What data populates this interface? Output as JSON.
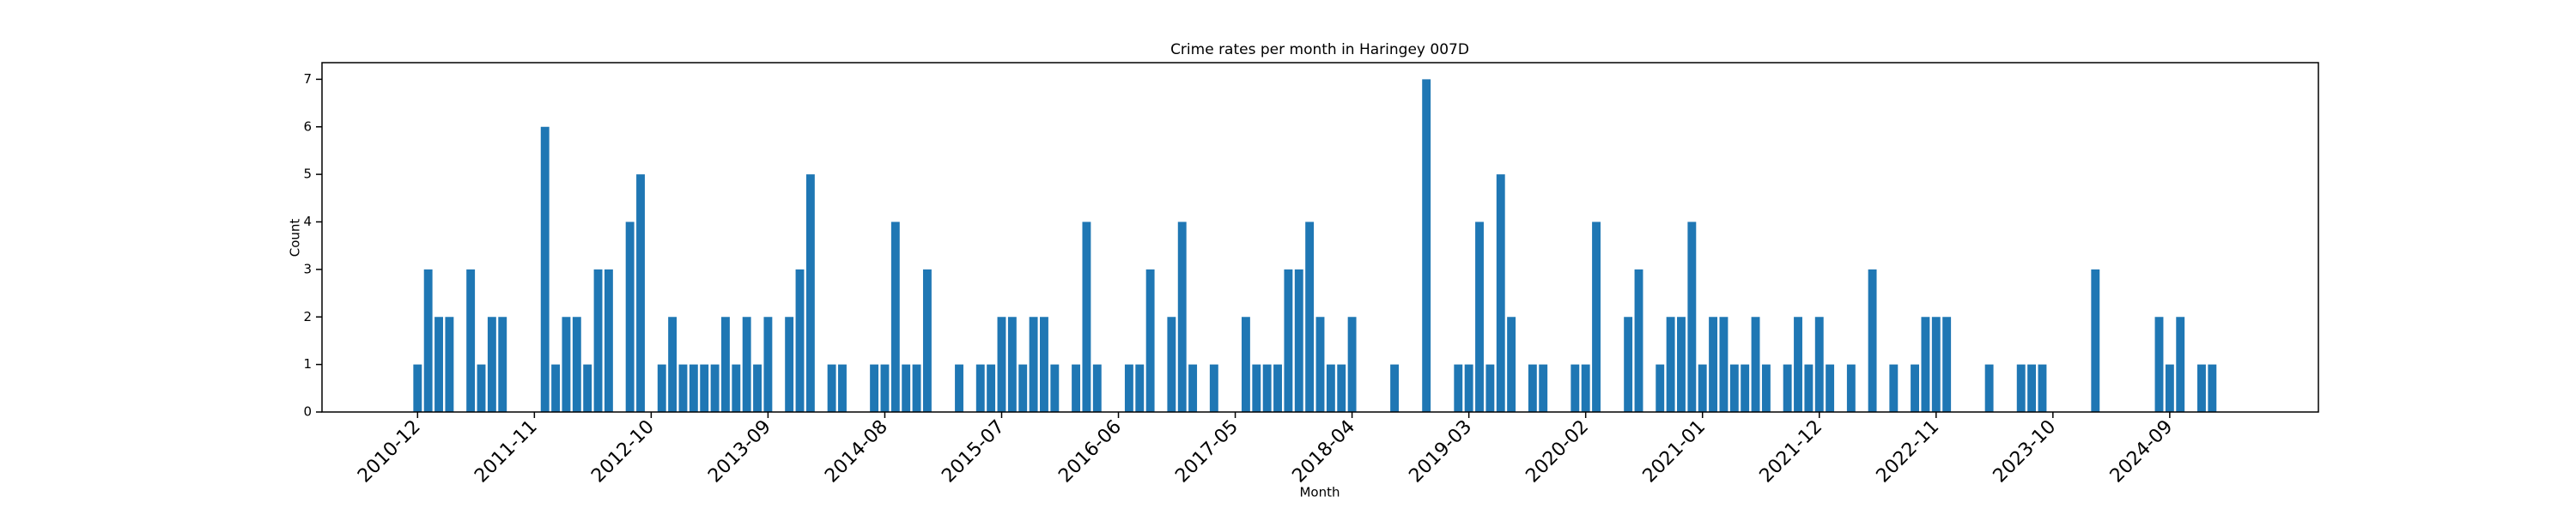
{
  "chart_data": {
    "type": "bar",
    "title": "Crime rates per month in Haringey 007D",
    "x_label": "Month",
    "y_label": "Count",
    "color": "#1f77b4",
    "x": [
      "2010-12",
      "2011-01",
      "2011-02",
      "2011-03",
      "2011-05",
      "2011-06",
      "2011-07",
      "2011-08",
      "2011-12",
      "2012-01",
      "2012-02",
      "2012-03",
      "2012-04",
      "2012-05",
      "2012-06",
      "2012-08",
      "2012-09",
      "2012-11",
      "2012-12",
      "2013-01",
      "2013-02",
      "2013-03",
      "2013-04",
      "2013-05",
      "2013-06",
      "2013-07",
      "2013-08",
      "2013-09",
      "2013-11",
      "2013-12",
      "2014-01",
      "2014-03",
      "2014-04",
      "2014-07",
      "2014-08",
      "2014-09",
      "2014-10",
      "2014-11",
      "2014-12",
      "2015-03",
      "2015-05",
      "2015-06",
      "2015-07",
      "2015-08",
      "2015-09",
      "2015-10",
      "2015-11",
      "2015-12",
      "2016-02",
      "2016-03",
      "2016-04",
      "2016-07",
      "2016-08",
      "2016-09",
      "2016-11",
      "2016-12",
      "2017-01",
      "2017-03",
      "2017-06",
      "2017-07",
      "2017-08",
      "2017-09",
      "2017-10",
      "2017-11",
      "2017-12",
      "2018-01",
      "2018-02",
      "2018-03",
      "2018-04",
      "2018-08",
      "2018-11",
      "2019-02",
      "2019-03",
      "2019-04",
      "2019-05",
      "2019-06",
      "2019-07",
      "2019-09",
      "2019-10",
      "2020-01",
      "2020-02",
      "2020-03",
      "2020-06",
      "2020-07",
      "2020-09",
      "2020-10",
      "2020-11",
      "2020-12",
      "2021-01",
      "2021-02",
      "2021-03",
      "2021-04",
      "2021-05",
      "2021-06",
      "2021-07",
      "2021-09",
      "2021-10",
      "2021-11",
      "2021-12",
      "2022-01",
      "2022-03",
      "2022-05",
      "2022-07",
      "2022-09",
      "2022-10",
      "2022-11",
      "2022-12",
      "2023-04",
      "2023-07",
      "2023-08",
      "2023-09",
      "2024-02",
      "2024-08",
      "2024-09",
      "2024-10",
      "2024-12",
      "2025-01"
    ],
    "values": [
      1,
      3,
      2,
      2,
      3,
      1,
      2,
      2,
      6,
      1,
      2,
      2,
      1,
      3,
      3,
      4,
      5,
      1,
      2,
      1,
      1,
      1,
      1,
      2,
      1,
      2,
      1,
      2,
      2,
      3,
      5,
      1,
      1,
      1,
      1,
      4,
      1,
      1,
      3,
      1,
      1,
      1,
      2,
      2,
      1,
      2,
      2,
      1,
      1,
      4,
      1,
      1,
      1,
      3,
      2,
      4,
      1,
      1,
      2,
      1,
      1,
      1,
      3,
      3,
      4,
      2,
      1,
      1,
      2,
      1,
      7,
      1,
      1,
      4,
      1,
      5,
      2,
      1,
      1,
      1,
      1,
      4,
      2,
      3,
      1,
      2,
      2,
      4,
      1,
      2,
      2,
      1,
      1,
      2,
      1,
      1,
      2,
      1,
      2,
      1,
      1,
      3,
      1,
      1,
      2,
      2,
      2,
      1,
      1,
      1,
      1,
      3,
      2,
      1,
      2,
      1,
      1
    ],
    "xlim": [
      "2010-03",
      "2025-11"
    ],
    "xticks": [
      "2010-12",
      "2011-11",
      "2012-10",
      "2013-09",
      "2014-08",
      "2015-07",
      "2016-06",
      "2017-05",
      "2018-04",
      "2019-03",
      "2020-02",
      "2021-01",
      "2021-12",
      "2022-11",
      "2023-10",
      "2024-09"
    ],
    "ylim": [
      0,
      7.35
    ],
    "yticks": [
      0,
      1,
      2,
      3,
      4,
      5,
      6,
      7
    ]
  }
}
